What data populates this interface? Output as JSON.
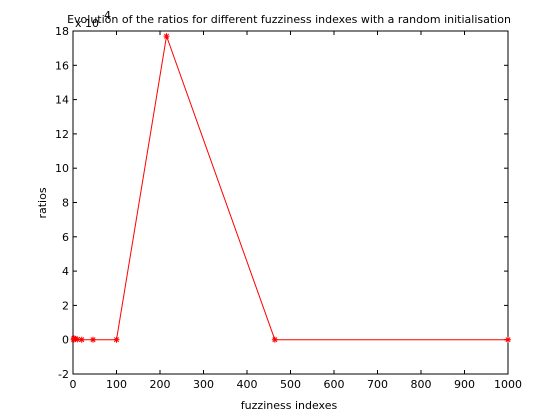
{
  "chart_data": {
    "type": "line",
    "title": "Evolution of the ratios for different fuzziness indexes with a random initialisation",
    "xlabel": "fuzziness indexes",
    "ylabel": "ratios",
    "y_multiplier": "x 10",
    "y_multiplier_exponent": "4",
    "xlim": [
      0,
      1000
    ],
    "ylim": [
      -2,
      18
    ],
    "x_ticks": [
      "0",
      "100",
      "200",
      "300",
      "400",
      "500",
      "600",
      "700",
      "800",
      "900",
      "1000"
    ],
    "y_ticks": [
      "-2",
      "0",
      "2",
      "4",
      "6",
      "8",
      "10",
      "12",
      "14",
      "16",
      "18"
    ],
    "grid": false,
    "series": [
      {
        "color": "#ff0000",
        "marker": "asterisk",
        "x": [
          1.5,
          2,
          5,
          10,
          20,
          46,
          100,
          215,
          464,
          1000
        ],
        "y": [
          0,
          0.08,
          0.05,
          0.02,
          0,
          0,
          0,
          17.7,
          0,
          0
        ]
      }
    ],
    "colors": {
      "line": "#ff0000",
      "axes": "#000000",
      "background": "#ffffff"
    }
  }
}
